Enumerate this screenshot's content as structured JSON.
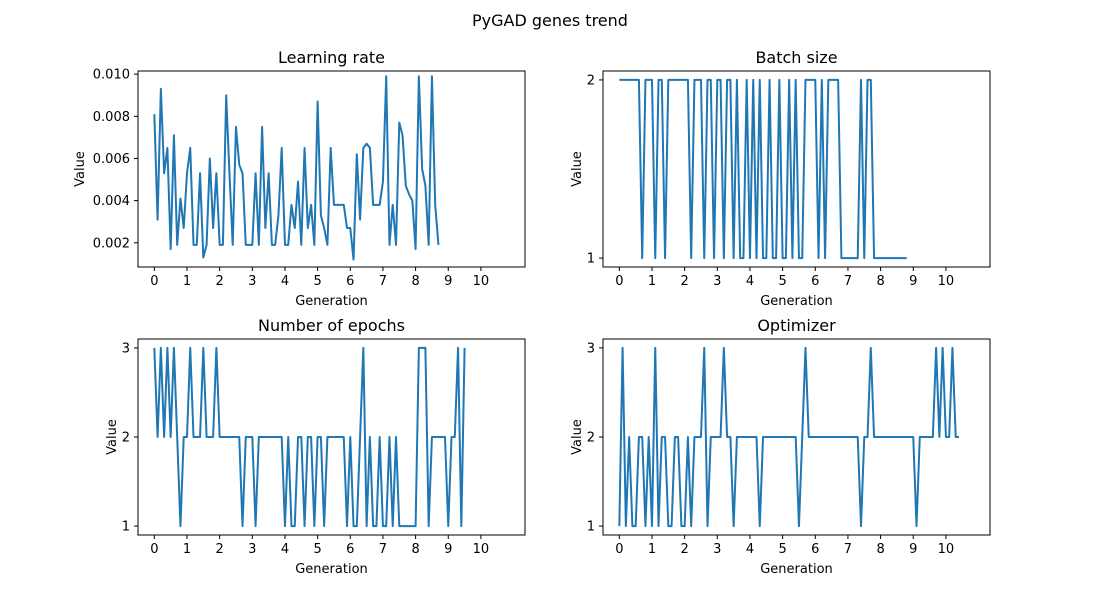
{
  "figure": {
    "suptitle": "PyGAD genes trend"
  },
  "colors": {
    "series": "#1f77b4"
  },
  "chart_data": [
    {
      "type": "line",
      "title": "Learning rate",
      "xlabel": "Generation",
      "ylabel": "Value",
      "xlim": [
        -0.5,
        11.35
      ],
      "ylim": [
        0.00085,
        0.01015
      ],
      "xticks": [
        0,
        1,
        2,
        3,
        4,
        5,
        6,
        7,
        8,
        9,
        10
      ],
      "xtick_labels": [
        "0",
        "1",
        "2",
        "3",
        "4",
        "5",
        "6",
        "7",
        "8",
        "9",
        "10"
      ],
      "yticks": [
        0.002,
        0.004,
        0.006,
        0.008,
        0.01
      ],
      "ytick_labels": [
        "0.002",
        "0.004",
        "0.006",
        "0.008",
        "0.010"
      ],
      "x_step": 0.1,
      "series": [
        {
          "values": [
            0.0081,
            0.0031,
            0.0093,
            0.0053,
            0.0065,
            0.0017,
            0.0071,
            0.0019,
            0.0041,
            0.0027,
            0.0053,
            0.0065,
            0.0019,
            0.0019,
            0.0053,
            0.0013,
            0.0019,
            0.006,
            0.0027,
            0.0053,
            0.0019,
            0.0019,
            0.009,
            0.0053,
            0.0019,
            0.0075,
            0.0057,
            0.0053,
            0.0019,
            0.0019,
            0.0019,
            0.0053,
            0.0019,
            0.0075,
            0.0027,
            0.0053,
            0.0019,
            0.0019,
            0.0033,
            0.0065,
            0.0019,
            0.0019,
            0.0038,
            0.0027,
            0.0049,
            0.0019,
            0.0065,
            0.0027,
            0.0038,
            0.0019,
            0.0087,
            0.0033,
            0.0027,
            0.0019,
            0.0065,
            0.0038,
            0.0038,
            0.0038,
            0.0038,
            0.0027,
            0.0027,
            0.0012,
            0.0062,
            0.0031,
            0.0065,
            0.0067,
            0.0065,
            0.0038,
            0.0038,
            0.0038,
            0.0049,
            0.0099,
            0.0019,
            0.0038,
            0.0019,
            0.0077,
            0.0071,
            0.0047,
            0.0043,
            0.004,
            0.0017,
            0.0099,
            0.0055,
            0.0047,
            0.0019,
            0.0099,
            0.0038,
            0.0019
          ]
        }
      ]
    },
    {
      "type": "line",
      "title": "Batch size",
      "xlabel": "Generation",
      "ylabel": "Value",
      "xlim": [
        -0.5,
        11.35
      ],
      "ylim": [
        0.95,
        2.05
      ],
      "xticks": [
        0,
        1,
        2,
        3,
        4,
        5,
        6,
        7,
        8,
        9,
        10
      ],
      "xtick_labels": [
        "0",
        "1",
        "2",
        "3",
        "4",
        "5",
        "6",
        "7",
        "8",
        "9",
        "10"
      ],
      "yticks": [
        1,
        2
      ],
      "ytick_labels": [
        "1",
        "2"
      ],
      "x_step": 0.1,
      "series": [
        {
          "values": [
            2,
            2,
            2,
            2,
            2,
            2,
            2,
            1,
            2,
            2,
            2,
            1,
            2,
            2,
            1,
            2,
            2,
            2,
            2,
            2,
            2,
            2,
            1,
            2,
            2,
            2,
            1,
            2,
            2,
            1,
            2,
            2,
            1,
            2,
            2,
            1,
            2,
            1,
            1,
            2,
            1,
            2,
            1,
            2,
            1,
            1,
            2,
            1,
            1,
            2,
            1,
            1,
            2,
            1,
            2,
            1,
            1,
            2,
            2,
            2,
            2,
            1,
            2,
            1,
            2,
            2,
            2,
            2,
            1,
            1,
            1,
            1,
            1,
            1,
            2,
            1,
            2,
            2,
            1,
            1,
            1,
            1,
            1,
            1,
            1,
            1,
            1,
            1,
            1
          ]
        }
      ]
    },
    {
      "type": "line",
      "title": "Number of epochs",
      "xlabel": "Generation",
      "ylabel": "Value",
      "xlim": [
        -0.5,
        11.35
      ],
      "ylim": [
        0.9,
        3.1
      ],
      "xticks": [
        0,
        1,
        2,
        3,
        4,
        5,
        6,
        7,
        8,
        9,
        10
      ],
      "xtick_labels": [
        "0",
        "1",
        "2",
        "3",
        "4",
        "5",
        "6",
        "7",
        "8",
        "9",
        "10"
      ],
      "yticks": [
        1,
        2,
        3
      ],
      "ytick_labels": [
        "1",
        "2",
        "3"
      ],
      "x_step": 0.1,
      "series": [
        {
          "values": [
            3,
            2,
            3,
            2,
            3,
            2,
            3,
            2,
            1,
            2,
            2,
            3,
            2,
            2,
            2,
            3,
            2,
            2,
            2,
            3,
            2,
            2,
            2,
            2,
            2,
            2,
            2,
            1,
            2,
            2,
            2,
            1,
            2,
            2,
            2,
            2,
            2,
            2,
            2,
            2,
            1,
            2,
            1,
            1,
            2,
            2,
            1,
            2,
            2,
            1,
            2,
            2,
            1,
            2,
            2,
            2,
            2,
            2,
            2,
            1,
            2,
            1,
            1,
            2,
            3,
            1,
            2,
            1,
            1,
            2,
            1,
            1,
            2,
            1,
            2,
            1,
            1,
            1,
            1,
            1,
            1,
            3,
            3,
            3,
            1,
            2,
            2,
            2,
            2,
            2,
            1,
            2,
            2,
            3,
            1,
            3
          ]
        }
      ]
    },
    {
      "type": "line",
      "title": "Optimizer",
      "xlabel": "Generation",
      "ylabel": "Value",
      "xlim": [
        -0.5,
        11.35
      ],
      "ylim": [
        0.9,
        3.1
      ],
      "xticks": [
        0,
        1,
        2,
        3,
        4,
        5,
        6,
        7,
        8,
        9,
        10
      ],
      "xtick_labels": [
        "0",
        "1",
        "2",
        "3",
        "4",
        "5",
        "6",
        "7",
        "8",
        "9",
        "10"
      ],
      "yticks": [
        1,
        2,
        3
      ],
      "ytick_labels": [
        "1",
        "2",
        "3"
      ],
      "x_step": 0.1,
      "series": [
        {
          "values": [
            1,
            3,
            1,
            2,
            1,
            1,
            2,
            2,
            1,
            2,
            1,
            3,
            1,
            2,
            2,
            1,
            1,
            2,
            2,
            1,
            1,
            2,
            1,
            2,
            2,
            2,
            3,
            1,
            2,
            2,
            2,
            2,
            3,
            2,
            2,
            1,
            2,
            2,
            2,
            2,
            2,
            2,
            2,
            1,
            2,
            2,
            2,
            2,
            2,
            2,
            2,
            2,
            2,
            2,
            2,
            1,
            2,
            3,
            2,
            2,
            2,
            2,
            2,
            2,
            2,
            2,
            2,
            2,
            2,
            2,
            2,
            2,
            2,
            2,
            1,
            2,
            2,
            3,
            2,
            2,
            2,
            2,
            2,
            2,
            2,
            2,
            2,
            2,
            2,
            2,
            2,
            1,
            2,
            2,
            2,
            2,
            2,
            3,
            2,
            3,
            2,
            2,
            3,
            2,
            2
          ]
        }
      ]
    }
  ]
}
